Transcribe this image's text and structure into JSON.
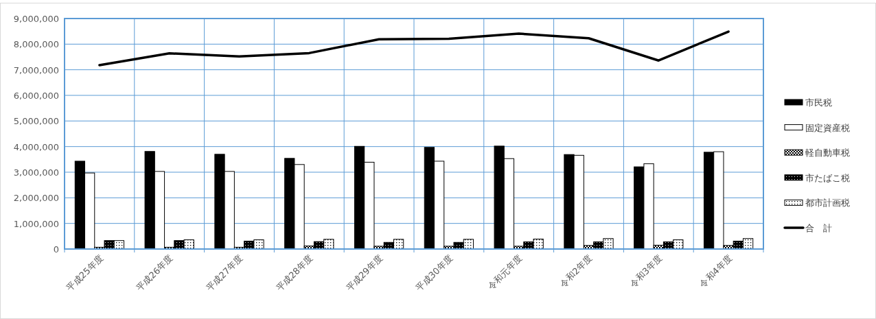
{
  "chart_data": {
    "type": "bar",
    "categories": [
      "平成25年度",
      "平成26年度",
      "平成27年度",
      "平成28年度",
      "平成29年度",
      "平成30年度",
      "令和元年度",
      "令和2年度",
      "令和3年度",
      "令和4年度"
    ],
    "series": [
      {
        "name": "市民税",
        "color": "#000000",
        "values": [
          3430000,
          3810000,
          3700000,
          3540000,
          4010000,
          3970000,
          4020000,
          3690000,
          3210000,
          3780000
        ]
      },
      {
        "name": "固定資産税",
        "color": "#ffffff",
        "values": [
          2970000,
          3030000,
          3030000,
          3300000,
          3390000,
          3430000,
          3530000,
          3660000,
          3330000,
          3800000
        ]
      },
      {
        "name": "軽自動車税",
        "color": "#000000",
        "values": [
          70000,
          70000,
          70000,
          120000,
          110000,
          110000,
          110000,
          140000,
          150000,
          140000
        ]
      },
      {
        "name": "市たばこ税",
        "color": "#000000",
        "values": [
          330000,
          330000,
          310000,
          290000,
          260000,
          260000,
          280000,
          280000,
          280000,
          310000
        ]
      },
      {
        "name": "都市計画税",
        "color": "#000000",
        "values": [
          330000,
          360000,
          360000,
          380000,
          380000,
          380000,
          390000,
          410000,
          360000,
          410000
        ]
      },
      {
        "name": "合　計",
        "type": "line",
        "color": "#000000",
        "values": [
          7180000,
          7640000,
          7520000,
          7650000,
          8190000,
          8210000,
          8410000,
          8230000,
          7360000,
          8490000
        ]
      }
    ],
    "ylim": [
      0,
      9000000
    ],
    "yticks": [
      {
        "value": 0,
        "label": "0"
      },
      {
        "value": 1000000,
        "label": "1,000,000"
      },
      {
        "value": 2000000,
        "label": "2,000,000"
      },
      {
        "value": 3000000,
        "label": "3,000,000"
      },
      {
        "value": 4000000,
        "label": "4,000,000"
      },
      {
        "value": 5000000,
        "label": "5,000,000"
      },
      {
        "value": 6000000,
        "label": "6,000,000"
      },
      {
        "value": 7000000,
        "label": "7,000,000"
      },
      {
        "value": 8000000,
        "label": "8,000,000"
      },
      {
        "value": 9000000,
        "label": "9,000,000"
      }
    ],
    "grid": true,
    "legend": "right",
    "marker": "none",
    "line_style": "solid"
  }
}
